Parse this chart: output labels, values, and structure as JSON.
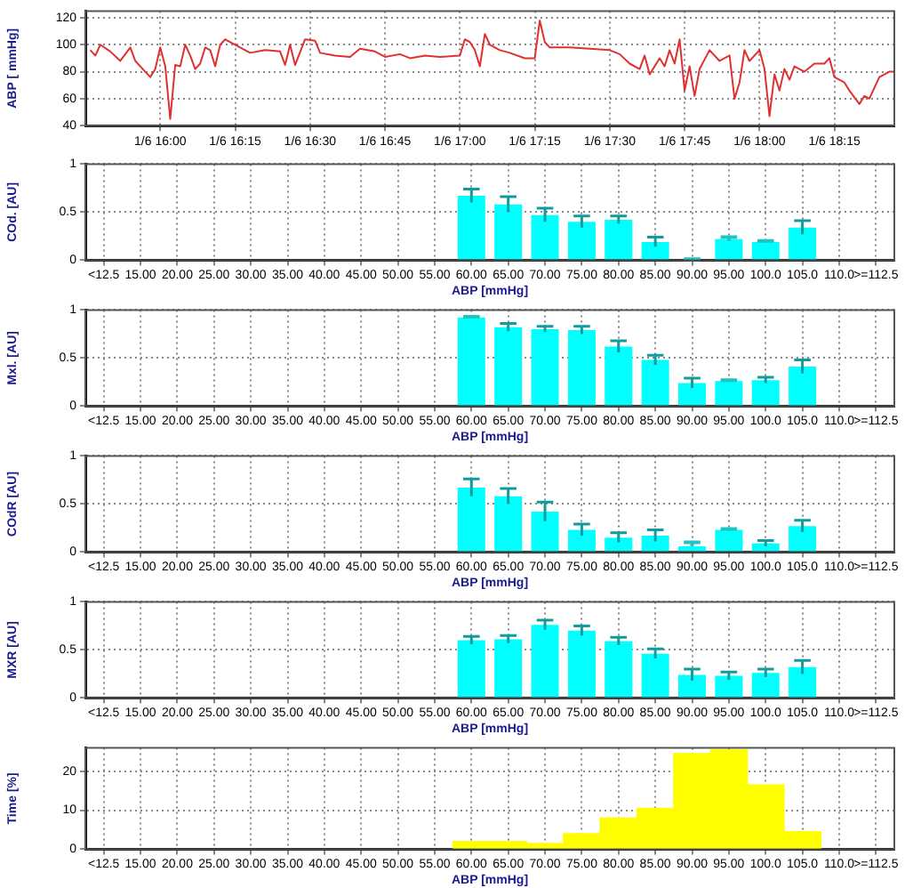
{
  "chart_data": [
    {
      "type": "line",
      "ylabel": "ABP [ mmHg]",
      "xlim": [
        "--01-06T15:45",
        "--01-06T18:27"
      ],
      "ylim": [
        40,
        125
      ],
      "yticks": [
        40,
        60,
        80,
        100,
        120
      ],
      "xticks": [
        {
          "value": "--01-06T16:00",
          "label": "1/6 16:00"
        },
        {
          "value": "--01-06T16:15",
          "label": "1/6 16:15"
        },
        {
          "value": "--01-06T16:30",
          "label": "1/6 16:30"
        },
        {
          "value": "--01-06T16:45",
          "label": "1/6 16:45"
        },
        {
          "value": "--01-06T17:00",
          "label": "1/6 17:00"
        },
        {
          "value": "--01-06T17:15",
          "label": "1/6 17:15"
        },
        {
          "value": "--01-06T17:30",
          "label": "1/6 17:30"
        },
        {
          "value": "--01-06T17:45",
          "label": "1/6 17:45"
        },
        {
          "value": "--01-06T18:00",
          "label": "1/6 18:00"
        },
        {
          "value": "--01-06T18:15",
          "label": "1/6 18:15"
        }
      ],
      "grid": true,
      "marker": "none",
      "series": [
        {
          "color": "#e03030",
          "x": [
            "--01-06T15:46",
            "--01-06T15:47",
            "--01-06T15:48",
            "--01-06T15:50",
            "--01-06T15:52",
            "--01-06T15:54",
            "--01-06T15:55",
            "--01-06T15:57",
            "--01-06T15:58",
            "--01-06T15:59",
            "--01-06T16:00",
            "--01-06T16:01",
            "--01-06T16:02",
            "--01-06T16:03",
            "--01-06T16:04",
            "--01-06T16:05",
            "--01-06T16:06",
            "--01-06T16:07",
            "--01-06T16:08",
            "--01-06T16:09",
            "--01-06T16:10",
            "--01-06T16:11",
            "--01-06T16:12",
            "--01-06T16:13",
            "--01-06T16:15",
            "--01-06T16:17",
            "--01-06T16:18",
            "--01-06T16:21",
            "--01-06T16:24",
            "--01-06T16:25",
            "--01-06T16:26",
            "--01-06T16:27",
            "--01-06T16:29",
            "--01-06T16:31",
            "--01-06T16:32",
            "--01-06T16:35",
            "--01-06T16:38",
            "--01-06T16:40",
            "--01-06T16:43",
            "--01-06T16:45",
            "--01-06T16:48",
            "--01-06T16:50",
            "--01-06T16:53",
            "--01-06T16:56",
            "--01-06T17:00",
            "--01-06T17:01",
            "--01-06T17:02",
            "--01-06T17:03",
            "--01-06T17:04",
            "--01-06T17:05",
            "--01-06T17:06",
            "--01-06T17:08",
            "--01-06T17:10",
            "--01-06T17:13",
            "--01-06T17:15",
            "--01-06T17:16",
            "--01-06T17:17",
            "--01-06T17:18",
            "--01-06T17:22",
            "--01-06T17:26",
            "--01-06T17:30",
            "--01-06T17:32",
            "--01-06T17:34",
            "--01-06T17:36",
            "--01-06T17:37",
            "--01-06T17:38",
            "--01-06T17:40",
            "--01-06T17:41",
            "--01-06T17:42",
            "--01-06T17:43",
            "--01-06T17:44",
            "--01-06T17:45",
            "--01-06T17:46",
            "--01-06T17:47",
            "--01-06T17:48",
            "--01-06T17:50",
            "--01-06T17:52",
            "--01-06T17:54",
            "--01-06T17:55",
            "--01-06T17:56",
            "--01-06T17:57",
            "--01-06T17:58",
            "--01-06T18:00",
            "--01-06T18:01",
            "--01-06T18:02",
            "--01-06T18:03",
            "--01-06T18:04",
            "--01-06T18:05",
            "--01-06T18:06",
            "--01-06T18:07",
            "--01-06T18:09",
            "--01-06T18:11",
            "--01-06T18:13",
            "--01-06T18:14",
            "--01-06T18:15",
            "--01-06T18:17",
            "--01-06T18:18",
            "--01-06T18:20",
            "--01-06T18:21",
            "--01-06T18:22",
            "--01-06T18:24",
            "--01-06T18:26",
            "--01-06T18:27"
          ],
          "values": [
            96,
            92,
            100,
            95,
            88,
            98,
            88,
            80,
            76,
            82,
            98,
            84,
            45,
            85,
            84,
            100,
            92,
            82,
            86,
            98,
            96,
            84,
            100,
            104,
            100,
            96,
            94,
            96,
            95,
            85,
            100,
            85,
            104,
            103,
            94,
            92,
            91,
            97,
            95,
            91,
            93,
            90,
            92,
            91,
            92,
            104,
            102,
            96,
            84,
            108,
            100,
            96,
            94,
            90,
            90,
            118,
            102,
            98,
            98,
            97,
            96,
            93,
            86,
            82,
            92,
            78,
            90,
            84,
            96,
            86,
            104,
            66,
            84,
            62,
            82,
            96,
            88,
            92,
            60,
            72,
            96,
            88,
            96,
            82,
            47,
            78,
            66,
            82,
            74,
            84,
            80,
            86,
            86,
            90,
            76,
            72,
            66,
            56,
            62,
            60,
            76,
            80,
            80
          ]
        }
      ]
    },
    {
      "type": "bar",
      "ylabel": "COd. [AU]",
      "xlabel": "ABP [mmHg]",
      "categories": [
        "<12.5",
        "15.00",
        "20.00",
        "25.00",
        "30.00",
        "35.00",
        "40.00",
        "45.00",
        "50.00",
        "55.00",
        "60.00",
        "65.00",
        "70.00",
        "75.00",
        "80.00",
        "85.00",
        "90.00",
        "95.00",
        "100.0",
        "105.0",
        "110.0",
        ">=112.5"
      ],
      "ylim": [
        0,
        1
      ],
      "yticks": [
        0,
        0.5,
        1
      ],
      "grid": true,
      "series": [
        {
          "color": "#00ffff",
          "values": [
            null,
            null,
            null,
            null,
            null,
            null,
            null,
            null,
            null,
            null,
            0.67,
            0.58,
            0.47,
            0.4,
            0.42,
            0.19,
            0,
            0.22,
            0.19,
            0.34,
            null,
            null
          ],
          "errors": [
            null,
            null,
            null,
            null,
            null,
            null,
            null,
            null,
            null,
            null,
            0.07,
            0.08,
            0.07,
            0.06,
            0.04,
            0.05,
            0.01,
            0.02,
            0.01,
            0.07,
            null,
            null
          ]
        }
      ]
    },
    {
      "type": "bar",
      "ylabel": "Mxl. [AU]",
      "xlabel": "ABP [mmHg]",
      "categories": [
        "<12.5",
        "15.00",
        "20.00",
        "25.00",
        "30.00",
        "35.00",
        "40.00",
        "45.00",
        "50.00",
        "55.00",
        "60.00",
        "65.00",
        "70.00",
        "75.00",
        "80.00",
        "85.00",
        "90.00",
        "95.00",
        "100.0",
        "105.0",
        "110.0",
        ">=112.5"
      ],
      "ylim": [
        0,
        1
      ],
      "yticks": [
        0,
        0.5,
        1
      ],
      "grid": true,
      "series": [
        {
          "color": "#00ffff",
          "values": [
            null,
            null,
            null,
            null,
            null,
            null,
            null,
            null,
            null,
            null,
            0.92,
            0.82,
            0.8,
            0.79,
            0.62,
            0.48,
            0.24,
            0.26,
            0.27,
            0.41,
            null,
            null
          ],
          "errors": [
            null,
            null,
            null,
            null,
            null,
            null,
            null,
            null,
            null,
            null,
            0.01,
            0.04,
            0.03,
            0.04,
            0.06,
            0.05,
            0.05,
            0.01,
            0.03,
            0.07,
            null,
            null
          ]
        }
      ]
    },
    {
      "type": "bar",
      "ylabel": "COdR [AU]",
      "xlabel": "ABP [mmHg]",
      "categories": [
        "<12.5",
        "15.00",
        "20.00",
        "25.00",
        "30.00",
        "35.00",
        "40.00",
        "45.00",
        "50.00",
        "55.00",
        "60.00",
        "65.00",
        "70.00",
        "75.00",
        "80.00",
        "85.00",
        "90.00",
        "95.00",
        "100.0",
        "105.0",
        "110.0",
        ">=112.5"
      ],
      "ylim": [
        0,
        1
      ],
      "yticks": [
        0,
        0.5,
        1
      ],
      "grid": true,
      "series": [
        {
          "color": "#00ffff",
          "values": [
            null,
            null,
            null,
            null,
            null,
            null,
            null,
            null,
            null,
            null,
            0.67,
            0.58,
            0.42,
            0.23,
            0.15,
            0.17,
            0.06,
            0.23,
            0.09,
            0.27,
            null,
            null
          ],
          "errors": [
            null,
            null,
            null,
            null,
            null,
            null,
            null,
            null,
            null,
            null,
            0.09,
            0.08,
            0.1,
            0.06,
            0.05,
            0.06,
            [
              0.06,
              0.1
            ],
            0.01,
            0.03,
            0.06,
            null,
            null
          ]
        }
      ]
    },
    {
      "type": "bar",
      "ylabel": "MXR [AU]",
      "xlabel": "ABP [mmHg]",
      "categories": [
        "<12.5",
        "15.00",
        "20.00",
        "25.00",
        "30.00",
        "35.00",
        "40.00",
        "45.00",
        "50.00",
        "55.00",
        "60.00",
        "65.00",
        "70.00",
        "75.00",
        "80.00",
        "85.00",
        "90.00",
        "95.00",
        "100.0",
        "105.0",
        "110.0",
        ">=112.5"
      ],
      "ylim": [
        0,
        1
      ],
      "yticks": [
        0,
        0.5,
        1
      ],
      "grid": true,
      "series": [
        {
          "color": "#00ffff",
          "values": [
            null,
            null,
            null,
            null,
            null,
            null,
            null,
            null,
            null,
            null,
            0.6,
            0.61,
            0.76,
            0.7,
            0.59,
            0.46,
            0.24,
            0.23,
            0.26,
            0.32,
            null,
            null
          ],
          "errors": [
            null,
            null,
            null,
            null,
            null,
            null,
            null,
            null,
            null,
            null,
            0.04,
            0.04,
            0.05,
            0.05,
            0.04,
            0.05,
            0.06,
            0.04,
            0.04,
            0.07,
            null,
            null
          ]
        }
      ]
    },
    {
      "type": "bar",
      "ylabel": "Time [%]",
      "xlabel": "ABP [mmHg]",
      "categories": [
        "<12.5",
        "15.00",
        "20.00",
        "25.00",
        "30.00",
        "35.00",
        "40.00",
        "45.00",
        "50.00",
        "55.00",
        "60.00",
        "65.00",
        "70.00",
        "75.00",
        "80.00",
        "85.00",
        "90.00",
        "95.00",
        "100.0",
        "105.0",
        "110.0",
        ">=112.5"
      ],
      "ylim": [
        0,
        26
      ],
      "yticks": [
        0,
        10,
        20
      ],
      "grid": true,
      "series": [
        {
          "color": "#ffff00",
          "values": [
            null,
            null,
            null,
            null,
            null,
            null,
            null,
            null,
            null,
            null,
            2,
            2,
            1.5,
            4,
            8,
            10.5,
            24.5,
            25.5,
            16.5,
            4.5,
            null,
            null
          ]
        }
      ]
    }
  ]
}
